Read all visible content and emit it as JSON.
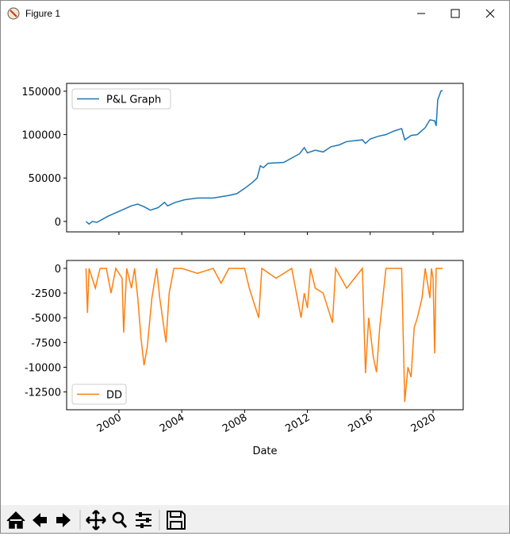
{
  "window_title": "Figure 1",
  "chart_data": [
    {
      "type": "line",
      "x": [
        1997.9,
        1998.1,
        1998.3,
        1998.6,
        1998.9,
        1999.3,
        1999.8,
        2000.3,
        2000.8,
        2001.2,
        2001.6,
        2002.0,
        2002.5,
        2002.9,
        2003.1,
        2003.6,
        2004.2,
        2005.0,
        2006.0,
        2007.0,
        2007.5,
        2008.0,
        2008.5,
        2008.8,
        2009.0,
        2009.2,
        2009.5,
        2010.5,
        2011.0,
        2011.5,
        2011.8,
        2012.0,
        2012.5,
        2013.0,
        2013.5,
        2014.0,
        2014.5,
        2015.5,
        2015.7,
        2016.0,
        2016.5,
        2017.0,
        2017.5,
        2018.0,
        2018.2,
        2018.6,
        2019.0,
        2019.5,
        2019.8,
        2020.1,
        2020.2,
        2020.3,
        2020.5,
        2020.6
      ],
      "series": [
        {
          "name": "P&L Graph",
          "color": "#1f77b4",
          "values": [
            0,
            -3000,
            0,
            -1000,
            2000,
            6000,
            10000,
            14000,
            18000,
            20000,
            17000,
            13000,
            16000,
            22000,
            18000,
            22000,
            25000,
            27000,
            27000,
            30000,
            32000,
            38000,
            45000,
            50000,
            64000,
            62000,
            67000,
            68000,
            73000,
            78000,
            85000,
            79000,
            82000,
            80000,
            86000,
            88000,
            92000,
            94000,
            90000,
            95000,
            98000,
            100000,
            104000,
            107000,
            94000,
            99000,
            100000,
            108000,
            117000,
            116000,
            110000,
            140000,
            150000,
            151000
          ]
        }
      ],
      "xlim": [
        1996.67,
        2021.92
      ],
      "xticks": [
        2000,
        2004,
        2008,
        2012,
        2016,
        2020
      ],
      "ylim": [
        -12000,
        159000
      ],
      "yticks": [
        0,
        50000,
        100000,
        150000
      ],
      "legend": "upper left"
    },
    {
      "type": "line",
      "x": [
        1997.9,
        1998.0,
        1998.1,
        1998.5,
        1998.8,
        1999.2,
        1999.5,
        1999.8,
        2000.2,
        2000.3,
        2000.5,
        2000.8,
        2001.0,
        2001.2,
        2001.4,
        2001.6,
        2001.8,
        2002.1,
        2002.4,
        2002.6,
        2003.0,
        2003.2,
        2003.5,
        2004.0,
        2005.0,
        2006.0,
        2006.5,
        2007.0,
        2008.0,
        2008.3,
        2008.6,
        2008.9,
        2009.1,
        2010.0,
        2011.0,
        2011.6,
        2011.8,
        2012.0,
        2012.2,
        2012.5,
        2013.0,
        2013.6,
        2013.8,
        2014.5,
        2015.0,
        2015.5,
        2015.7,
        2015.9,
        2016.2,
        2016.4,
        2016.6,
        2017.0,
        2018.0,
        2018.2,
        2018.4,
        2018.6,
        2018.8,
        2019.0,
        2019.3,
        2019.5,
        2019.8,
        2019.9,
        2020.0,
        2020.1,
        2020.2,
        2020.6
      ],
      "series": [
        {
          "name": "DD",
          "color": "#ff7f0e",
          "values": [
            0,
            -4500,
            0,
            -2000,
            0,
            0,
            -2500,
            0,
            -1000,
            -6500,
            0,
            -2000,
            0,
            -3000,
            -7000,
            -9800,
            -8000,
            -3000,
            0,
            -3000,
            -7500,
            -2500,
            0,
            0,
            -500,
            0,
            -1500,
            0,
            0,
            -2000,
            -3500,
            -5000,
            0,
            -1000,
            0,
            -5000,
            -2500,
            -4000,
            0,
            -2000,
            -2500,
            -5500,
            0,
            -2000,
            -1000,
            0,
            -10600,
            -5000,
            -9000,
            -10500,
            -6000,
            0,
            0,
            -13500,
            -10000,
            -11000,
            -6000,
            -5000,
            -3000,
            0,
            -3000,
            0,
            -1000,
            -8600,
            0,
            0
          ]
        }
      ],
      "xlim": [
        1996.67,
        2021.92
      ],
      "xticks": [
        2000,
        2004,
        2008,
        2012,
        2016,
        2020
      ],
      "ylim": [
        -14300,
        800
      ],
      "yticks": [
        0,
        -2500,
        -5000,
        -7500,
        -10000,
        -12500
      ],
      "xlabel": "Date",
      "legend": "lower left"
    }
  ]
}
